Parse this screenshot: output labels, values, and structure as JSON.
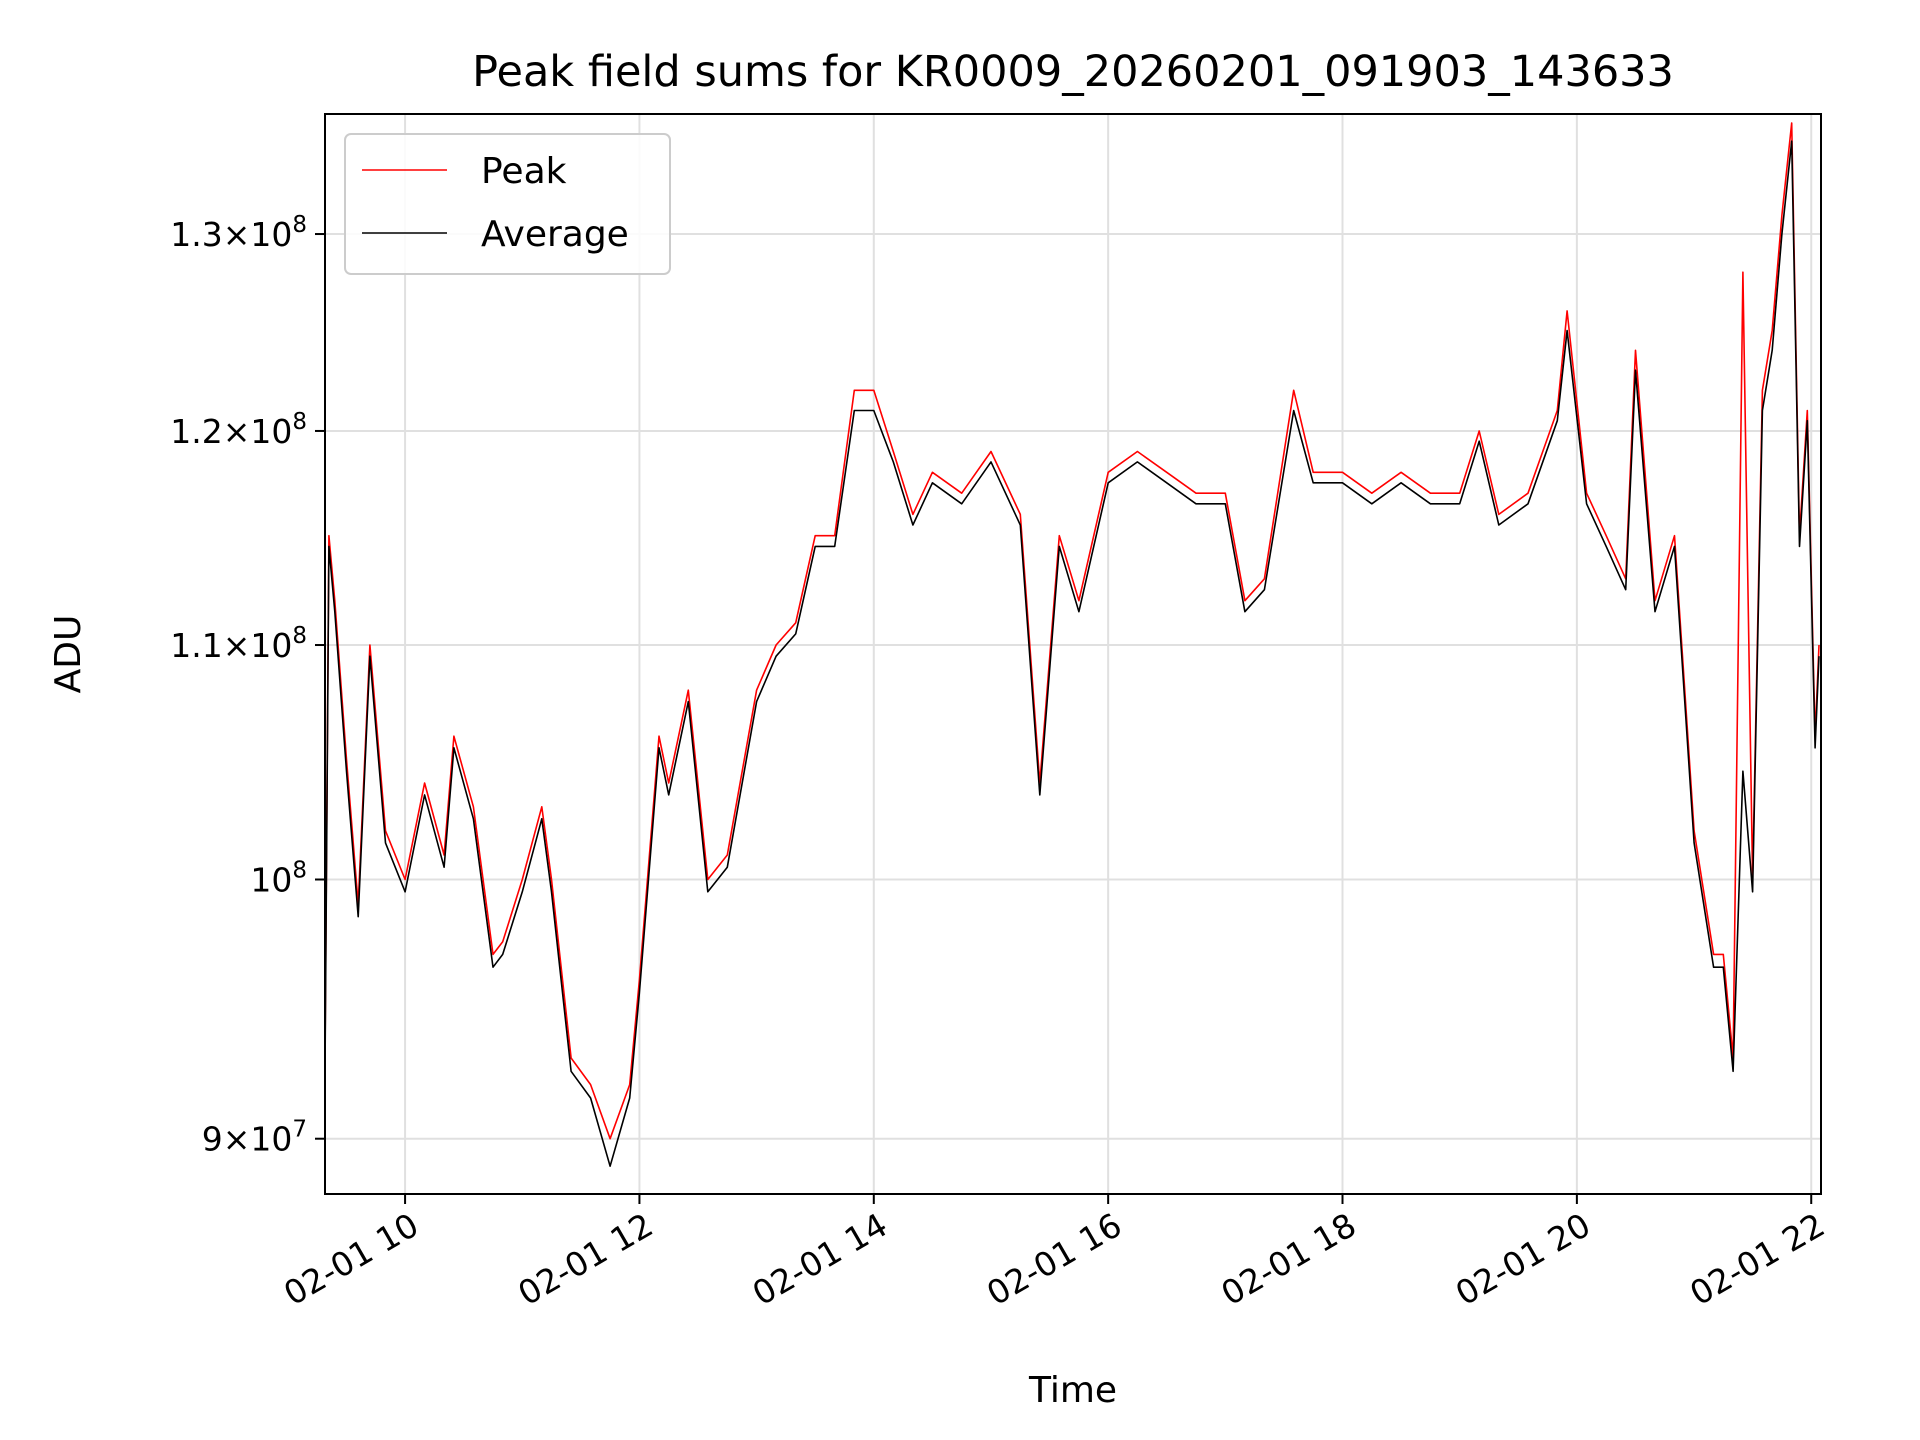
{
  "chart_data": {
    "type": "line",
    "title": "Peak field sums for KR0009_20260201_091903_143633",
    "xlabel": "Time",
    "ylabel": "ADU",
    "x_range": [
      "2026-02-01 09:19",
      "2026-02-01 22:05"
    ],
    "ylim": [
      88000000,
      136500000
    ],
    "yscale": "log",
    "grid": true,
    "legend_position": "upper-left",
    "x_ticks": [
      "02-01 10",
      "02-01 12",
      "02-01 14",
      "02-01 16",
      "02-01 18",
      "02-01 20",
      "02-01 22"
    ],
    "y_ticks": [
      {
        "value": 90000000,
        "mantissa": "9",
        "exponent": "7"
      },
      {
        "value": 100000000,
        "mantissa": "",
        "exponent": "8"
      },
      {
        "value": 110000000,
        "mantissa": "1.1",
        "exponent": "8"
      },
      {
        "value": 120000000,
        "mantissa": "1.2",
        "exponent": "8"
      },
      {
        "value": 130000000,
        "mantissa": "1.3",
        "exponent": "8"
      }
    ],
    "x": [
      "2026-02-01 09:19",
      "2026-02-01 09:21",
      "2026-02-01 09:24",
      "2026-02-01 09:30",
      "2026-02-01 09:36",
      "2026-02-01 09:42",
      "2026-02-01 09:50",
      "2026-02-01 10:00",
      "2026-02-01 10:10",
      "2026-02-01 10:20",
      "2026-02-01 10:25",
      "2026-02-01 10:35",
      "2026-02-01 10:45",
      "2026-02-01 10:50",
      "2026-02-01 11:00",
      "2026-02-01 11:10",
      "2026-02-01 11:15",
      "2026-02-01 11:25",
      "2026-02-01 11:35",
      "2026-02-01 11:45",
      "2026-02-01 11:55",
      "2026-02-01 12:00",
      "2026-02-01 12:10",
      "2026-02-01 12:15",
      "2026-02-01 12:25",
      "2026-02-01 12:35",
      "2026-02-01 12:45",
      "2026-02-01 13:00",
      "2026-02-01 13:10",
      "2026-02-01 13:20",
      "2026-02-01 13:30",
      "2026-02-01 13:40",
      "2026-02-01 13:50",
      "2026-02-01 14:00",
      "2026-02-01 14:10",
      "2026-02-01 14:20",
      "2026-02-01 14:30",
      "2026-02-01 14:45",
      "2026-02-01 15:00",
      "2026-02-01 15:15",
      "2026-02-01 15:25",
      "2026-02-01 15:35",
      "2026-02-01 15:45",
      "2026-02-01 16:00",
      "2026-02-01 16:15",
      "2026-02-01 16:30",
      "2026-02-01 16:45",
      "2026-02-01 17:00",
      "2026-02-01 17:10",
      "2026-02-01 17:20",
      "2026-02-01 17:35",
      "2026-02-01 17:45",
      "2026-02-01 18:00",
      "2026-02-01 18:15",
      "2026-02-01 18:30",
      "2026-02-01 18:45",
      "2026-02-01 19:00",
      "2026-02-01 19:10",
      "2026-02-01 19:20",
      "2026-02-01 19:35",
      "2026-02-01 19:50",
      "2026-02-01 19:55",
      "2026-02-01 20:05",
      "2026-02-01 20:15",
      "2026-02-01 20:25",
      "2026-02-01 20:30",
      "2026-02-01 20:40",
      "2026-02-01 20:50",
      "2026-02-01 21:00",
      "2026-02-01 21:10",
      "2026-02-01 21:15",
      "2026-02-01 21:20",
      "2026-02-01 21:25",
      "2026-02-01 21:30",
      "2026-02-01 21:35",
      "2026-02-01 21:40",
      "2026-02-01 21:45",
      "2026-02-01 21:50",
      "2026-02-01 21:54",
      "2026-02-01 21:58",
      "2026-02-01 22:02",
      "2026-02-01 22:04"
    ],
    "series": [
      {
        "name": "Peak",
        "color": "#ff0000",
        "values": [
          93000000,
          115000000,
          112000000,
          105000000,
          99000000,
          110000000,
          102000000,
          100000000,
          104000000,
          101000000,
          106000000,
          103000000,
          97000000,
          97500000,
          100000000,
          103000000,
          100000000,
          93000000,
          92000000,
          90000000,
          92000000,
          96000000,
          106000000,
          104000000,
          108000000,
          100000000,
          101000000,
          108000000,
          110000000,
          111000000,
          115000000,
          115000000,
          122000000,
          122000000,
          119000000,
          116000000,
          118000000,
          117000000,
          119000000,
          116000000,
          104000000,
          115000000,
          112000000,
          118000000,
          119000000,
          118000000,
          117000000,
          117000000,
          112000000,
          113000000,
          122000000,
          118000000,
          118000000,
          117000000,
          118000000,
          117000000,
          117000000,
          120000000,
          116000000,
          117000000,
          121000000,
          126000000,
          117000000,
          115000000,
          113000000,
          124000000,
          112000000,
          115000000,
          102000000,
          97000000,
          97000000,
          93000000,
          128000000,
          100000000,
          122000000,
          125000000,
          131000000,
          136000000,
          115000000,
          121000000,
          106000000,
          110000000
        ]
      },
      {
        "name": "Average",
        "color": "#000000",
        "values": [
          92500000,
          114500000,
          111500000,
          104500000,
          98500000,
          109500000,
          101500000,
          99500000,
          103500000,
          100500000,
          105500000,
          102500000,
          96500000,
          97000000,
          99500000,
          102500000,
          99500000,
          92500000,
          91500000,
          89000000,
          91500000,
          95500000,
          105500000,
          103500000,
          107500000,
          99500000,
          100500000,
          107500000,
          109500000,
          110500000,
          114500000,
          114500000,
          121000000,
          121000000,
          118500000,
          115500000,
          117500000,
          116500000,
          118500000,
          115500000,
          103500000,
          114500000,
          111500000,
          117500000,
          118500000,
          117500000,
          116500000,
          116500000,
          111500000,
          112500000,
          121000000,
          117500000,
          117500000,
          116500000,
          117500000,
          116500000,
          116500000,
          119500000,
          115500000,
          116500000,
          120500000,
          125000000,
          116500000,
          114500000,
          112500000,
          123000000,
          111500000,
          114500000,
          101500000,
          96500000,
          96500000,
          92500000,
          104500000,
          99500000,
          121000000,
          124000000,
          130000000,
          135000000,
          114500000,
          120500000,
          105500000,
          109500000
        ]
      }
    ]
  }
}
